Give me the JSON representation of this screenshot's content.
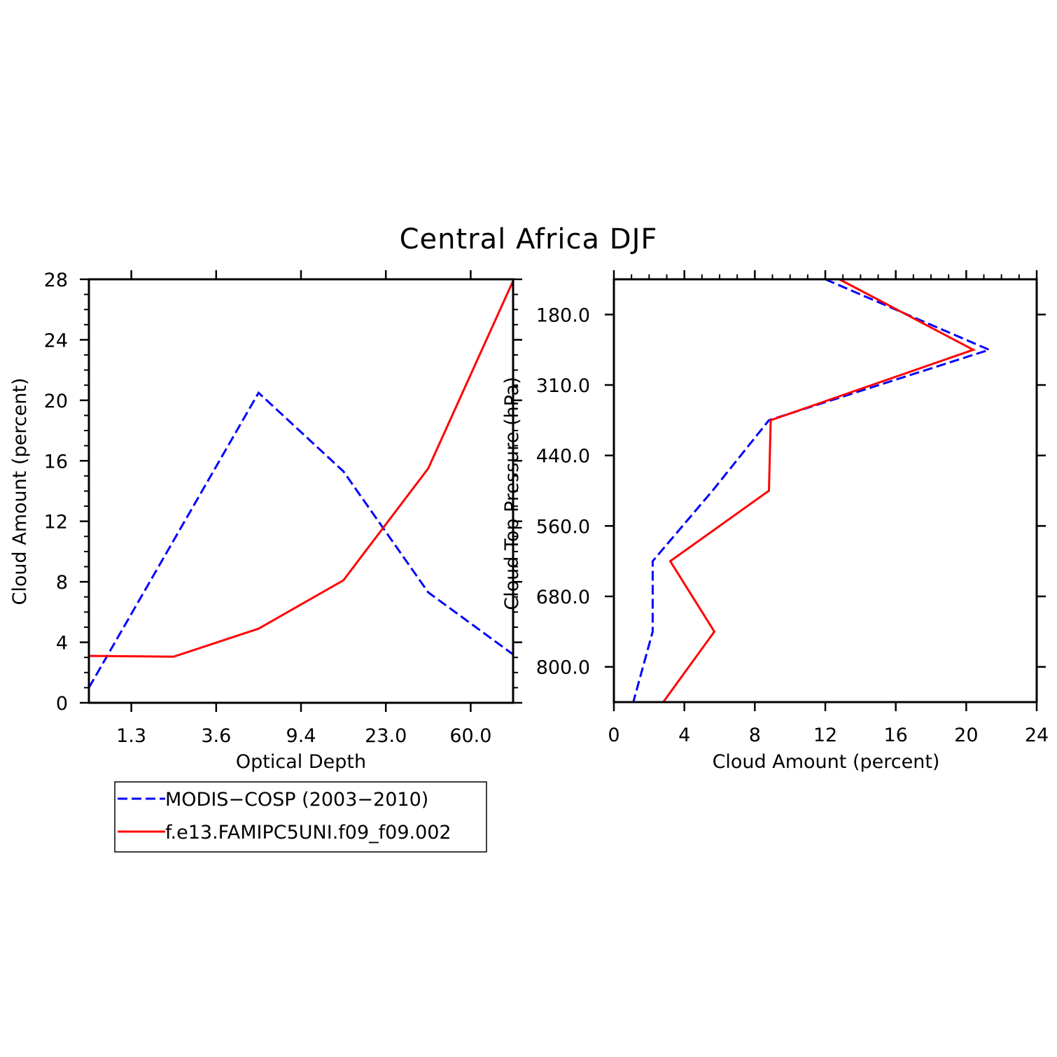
{
  "title": "Central Africa DJF",
  "colors": {
    "series_obs": "#0000ff",
    "series_model": "#ff0000",
    "axes": "#000000",
    "background": "#ffffff"
  },
  "legend": {
    "placement": "below-left",
    "entries": [
      {
        "label": "MODIS−COSP (2003−2010)",
        "color": "#0000ff",
        "style": "dashed"
      },
      {
        "label": "f.e13.FAMIPC5UNI.f09_f09.002",
        "color": "#ff0000",
        "style": "solid"
      }
    ]
  },
  "chart_data": [
    {
      "type": "line",
      "xlabel": "Optical Depth",
      "ylabel": "Cloud Amount (percent)",
      "x_categories": [
        "",
        "1.3",
        "",
        "3.6",
        "",
        "9.4",
        "",
        "23.0",
        "",
        "60.0",
        ""
      ],
      "xlim_index": [
        0,
        10
      ],
      "ylim": [
        0,
        28
      ],
      "yticks": [
        0,
        4,
        8,
        12,
        16,
        20,
        24,
        28
      ],
      "ytick_labels": [
        "0",
        "4",
        "8",
        "12",
        "16",
        "20",
        "24",
        "28"
      ],
      "series": [
        {
          "name": "MODIS−COSP (2003−2010)",
          "color": "#0000ff",
          "style": "dashed",
          "x_index": [
            0,
            4,
            6,
            8,
            10
          ],
          "values": [
            1.0,
            20.5,
            15.3,
            7.3,
            3.2
          ]
        },
        {
          "name": "f.e13.FAMIPC5UNI.f09_f09.002",
          "color": "#ff0000",
          "style": "solid",
          "x_index": [
            0,
            2,
            4,
            6,
            8,
            10
          ],
          "values": [
            3.1,
            3.05,
            4.9,
            8.1,
            15.5,
            27.9
          ]
        }
      ]
    },
    {
      "type": "line",
      "orientation": "horizontal-profile",
      "xlabel": "Cloud Amount (percent)",
      "ylabel": "Cloud Top Pressure (hPa)",
      "xlim": [
        0,
        24
      ],
      "xticks": [
        0,
        4,
        8,
        12,
        16,
        20,
        24
      ],
      "xtick_labels": [
        "0",
        "4",
        "8",
        "12",
        "16",
        "20",
        "24"
      ],
      "y_categories": [
        "",
        "180.0",
        "",
        "310.0",
        "",
        "440.0",
        "",
        "560.0",
        "",
        "680.0",
        "",
        "800.0",
        ""
      ],
      "ylim_index": [
        0,
        12
      ],
      "series": [
        {
          "name": "MODIS−COSP (2003−2010)",
          "color": "#0000ff",
          "style": "dashed",
          "y_index": [
            0,
            2,
            4,
            6,
            8,
            10,
            12
          ],
          "values": [
            12.0,
            21.3,
            8.8,
            5.6,
            2.2,
            2.2,
            1.1
          ]
        },
        {
          "name": "f.e13.FAMIPC5UNI.f09_f09.002",
          "color": "#ff0000",
          "style": "solid",
          "y_index": [
            0,
            2,
            4,
            6,
            8,
            10,
            12
          ],
          "values": [
            12.8,
            20.4,
            8.9,
            8.8,
            3.2,
            5.7,
            2.8
          ]
        }
      ]
    }
  ]
}
